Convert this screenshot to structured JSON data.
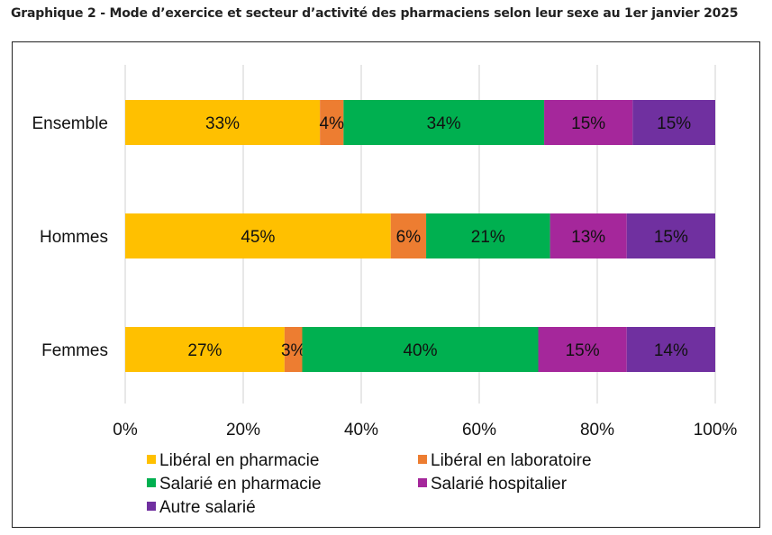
{
  "chart_data": {
    "type": "bar",
    "orientation": "horizontal",
    "stacked": true,
    "title": "Graphique 2 - Mode d’exercice et secteur d’activité des pharmaciens selon leur sexe au 1er janvier 2025",
    "categories": [
      "Ensemble",
      "Hommes",
      "Femmes"
    ],
    "series": [
      {
        "name": "Libéral en pharmacie",
        "color": "#FFC000",
        "values": [
          33,
          45,
          27
        ],
        "labels": [
          "33%",
          "45%",
          "27%"
        ]
      },
      {
        "name": "Libéral en laboratoire",
        "color": "#ED7D31",
        "values": [
          4,
          6,
          3
        ],
        "labels": [
          "4%",
          "6%",
          "3%"
        ]
      },
      {
        "name": "Salarié en pharmacie",
        "color": "#00B050",
        "values": [
          34,
          21,
          40
        ],
        "labels": [
          "34%",
          "21%",
          "40%"
        ]
      },
      {
        "name": "Salarié hospitalier",
        "color": "#A5279B",
        "values": [
          15,
          13,
          15
        ],
        "labels": [
          "15%",
          "13%",
          "15%"
        ]
      },
      {
        "name": "Autre salarié",
        "color": "#7030A0",
        "values": [
          15,
          15,
          14
        ],
        "labels": [
          "15%",
          "15%",
          "14%"
        ]
      }
    ],
    "xlim": [
      0,
      100
    ],
    "xticks": [
      "0%",
      "20%",
      "40%",
      "60%",
      "80%",
      "100%"
    ],
    "grid": "vertical",
    "legend": "bottom"
  }
}
